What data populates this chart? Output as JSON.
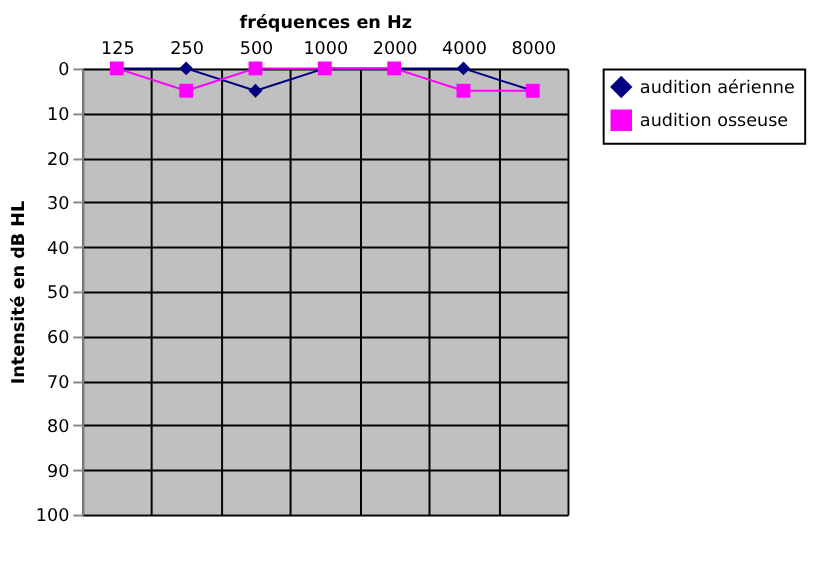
{
  "chart_data": {
    "type": "line",
    "xlabel": "fréquences en Hz",
    "ylabel": "Intensité en dB HL",
    "categories": [
      "125",
      "250",
      "500",
      "1000",
      "2000",
      "4000",
      "8000"
    ],
    "series": [
      {
        "name": "audition aérienne",
        "color": "#000080",
        "marker": "diamond",
        "values": [
          0,
          0,
          5,
          0,
          0,
          0,
          5
        ]
      },
      {
        "name": "audition osseuse",
        "color": "#ff00ff",
        "marker": "square",
        "values": [
          0,
          5,
          0,
          0,
          0,
          5,
          5
        ]
      }
    ],
    "ylim": [
      100,
      0
    ],
    "yticks": [
      0,
      10,
      20,
      30,
      40,
      50,
      60,
      70,
      80,
      90,
      100
    ],
    "grid": true,
    "legend": "right"
  }
}
